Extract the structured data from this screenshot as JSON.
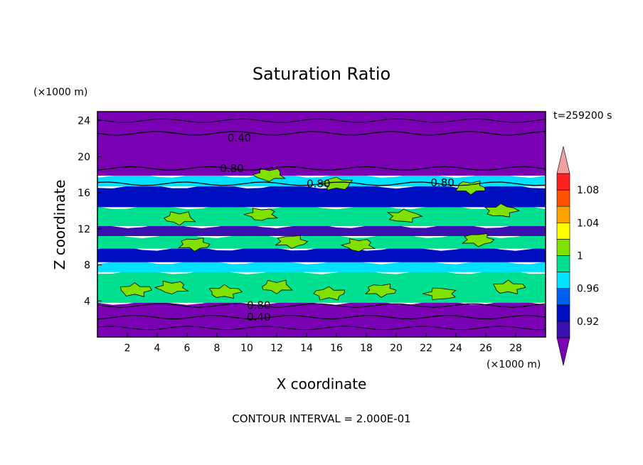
{
  "chart_data": {
    "type": "heatmap",
    "title": "Saturation Ratio",
    "xlabel": "X coordinate",
    "ylabel": "Z coordinate",
    "x_unit": "(×1000 m)",
    "y_unit": "(×1000 m)",
    "time_label": "t=259200 s",
    "footer": "CONTOUR INTERVAL = 2.000E-01",
    "xlim": [
      0,
      30
    ],
    "ylim": [
      0,
      25
    ],
    "x_ticks": [
      2,
      4,
      6,
      8,
      10,
      12,
      14,
      16,
      18,
      20,
      22,
      24,
      26,
      28
    ],
    "y_ticks": [
      4,
      8,
      12,
      16,
      20,
      24
    ],
    "colorbar": {
      "levels": [
        0.9,
        0.92,
        0.94,
        0.96,
        0.98,
        1.0,
        1.02,
        1.04,
        1.06,
        1.08,
        1.1
      ],
      "tick_labels": [
        {
          "value": 0.92,
          "text": "0.92"
        },
        {
          "value": 0.96,
          "text": "0.96"
        },
        {
          "value": 1.0,
          "text": "1"
        },
        {
          "value": 1.04,
          "text": "1.04"
        },
        {
          "value": 1.08,
          "text": "1.08"
        }
      ],
      "colors": [
        "#7a00b4",
        "#3a10b0",
        "#0010c0",
        "#0060f0",
        "#00e0ff",
        "#00e090",
        "#80e000",
        "#ffff00",
        "#ffa000",
        "#ff5000",
        "#ff2020",
        "#f0a0a0"
      ]
    },
    "contour_labels": [
      {
        "text": "0.40",
        "x": 9.5,
        "y": 22.1
      },
      {
        "text": "0.80",
        "x": 9.0,
        "y": 18.7
      },
      {
        "text": "0.80",
        "x": 14.8,
        "y": 17.0
      },
      {
        "text": "0.80",
        "x": 23.1,
        "y": 17.1
      },
      {
        "text": "0.80",
        "x": 10.8,
        "y": 3.5
      },
      {
        "text": "0.40",
        "x": 10.8,
        "y": 2.2
      }
    ],
    "bands": [
      {
        "z0": 0.0,
        "z1": 3.8,
        "value": 0.85
      },
      {
        "z0": 3.8,
        "z1": 7.2,
        "value": 0.99
      },
      {
        "z0": 7.2,
        "z1": 8.3,
        "value": 0.97
      },
      {
        "z0": 8.3,
        "z1": 9.8,
        "value": 0.93
      },
      {
        "z0": 9.8,
        "z1": 11.2,
        "value": 0.98
      },
      {
        "z0": 11.2,
        "z1": 12.3,
        "value": 0.91
      },
      {
        "z0": 12.3,
        "z1": 14.4,
        "value": 0.985
      },
      {
        "z0": 14.4,
        "z1": 16.7,
        "value": 0.92
      },
      {
        "z0": 16.7,
        "z1": 17.9,
        "value": 0.97
      },
      {
        "z0": 17.9,
        "z1": 25.0,
        "value": 0.8
      }
    ],
    "patches_1plus": [
      {
        "x": 2.5,
        "z": 5.2
      },
      {
        "x": 5.0,
        "z": 5.5
      },
      {
        "x": 8.5,
        "z": 5.0
      },
      {
        "x": 12.0,
        "z": 5.6
      },
      {
        "x": 15.5,
        "z": 4.8
      },
      {
        "x": 19.0,
        "z": 5.2
      },
      {
        "x": 23.0,
        "z": 4.8
      },
      {
        "x": 27.5,
        "z": 5.5
      },
      {
        "x": 6.5,
        "z": 10.3
      },
      {
        "x": 13.0,
        "z": 10.6
      },
      {
        "x": 17.5,
        "z": 10.2
      },
      {
        "x": 25.5,
        "z": 10.8
      },
      {
        "x": 5.5,
        "z": 13.2
      },
      {
        "x": 11.0,
        "z": 13.6
      },
      {
        "x": 20.5,
        "z": 13.4
      },
      {
        "x": 27.0,
        "z": 14.0
      },
      {
        "x": 11.5,
        "z": 18.0
      },
      {
        "x": 16.0,
        "z": 17.0
      },
      {
        "x": 25.0,
        "z": 16.6
      }
    ]
  }
}
